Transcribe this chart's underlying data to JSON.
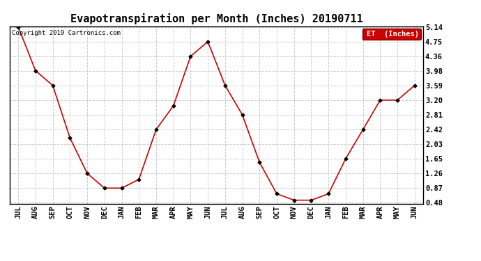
{
  "title": "Evapotranspiration per Month (Inches) 20190711",
  "copyright": "Copyright 2019 Cartronics.com",
  "legend_label": "ET  (Inches)",
  "months": [
    "JUL",
    "AUG",
    "SEP",
    "OCT",
    "NOV",
    "DEC",
    "JAN",
    "FEB",
    "MAR",
    "APR",
    "MAY",
    "JUN",
    "JUL",
    "AUG",
    "SEP",
    "OCT",
    "NOV",
    "DEC",
    "JAN",
    "FEB",
    "MAR",
    "APR",
    "MAY",
    "JUN"
  ],
  "values": [
    5.14,
    3.98,
    3.59,
    2.2,
    1.26,
    0.87,
    0.87,
    1.1,
    2.42,
    3.05,
    4.36,
    4.75,
    3.59,
    2.81,
    1.55,
    0.72,
    0.55,
    0.55,
    0.72,
    1.65,
    2.42,
    3.2,
    3.2,
    3.59
  ],
  "yticks": [
    0.48,
    0.87,
    1.26,
    1.65,
    2.03,
    2.42,
    2.81,
    3.2,
    3.59,
    3.98,
    4.36,
    4.75,
    5.14
  ],
  "ytick_labels": [
    "0.48",
    "0.87",
    "1.26",
    "1.65",
    "2.03",
    "2.42",
    "2.81",
    "3.20",
    "3.59",
    "3.98",
    "4.36",
    "4.75",
    "5.14"
  ],
  "line_color": "#cc0000",
  "marker_color": "#000000",
  "grid_color": "#cccccc",
  "background_color": "#ffffff",
  "legend_bg": "#cc0000",
  "legend_text_color": "#ffffff",
  "title_fontsize": 11,
  "tick_fontsize": 7.5,
  "copyright_fontsize": 6.5,
  "legend_fontsize": 7.5,
  "ymin": 0.48,
  "ymax": 5.14
}
